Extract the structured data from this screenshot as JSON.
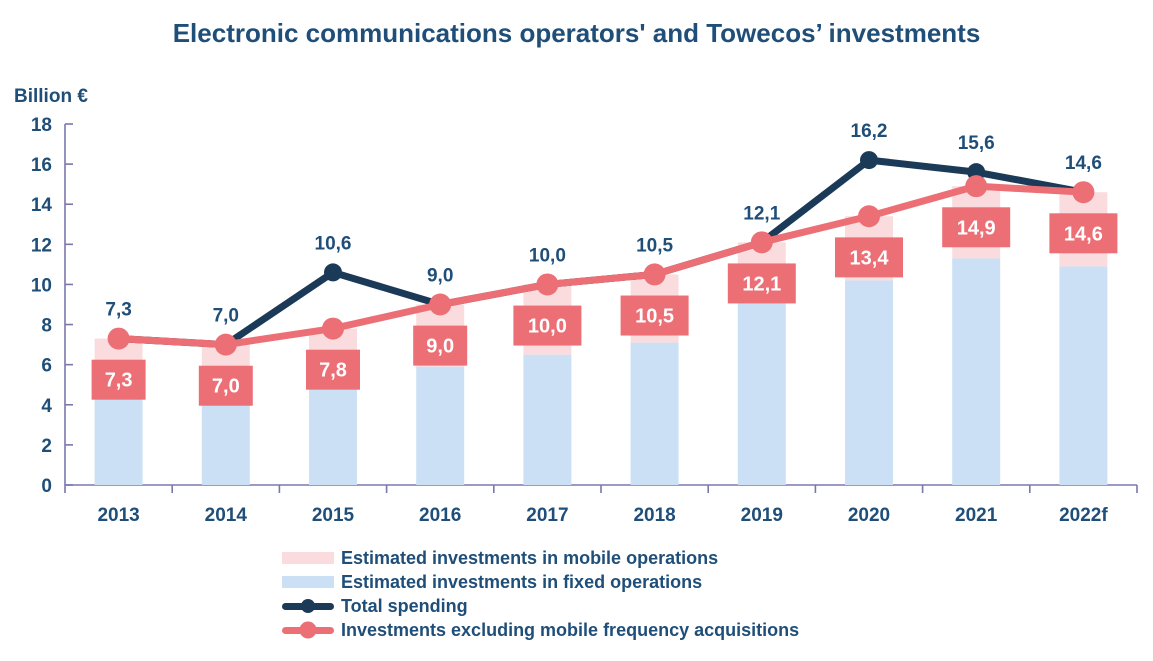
{
  "title": "Electronic communications operators' and Towecos’ investments",
  "colors": {
    "text_navy": "#1F4E79",
    "line_navy": "#1B3A58",
    "coral": "#EC6F76",
    "pink_bar": "#FADCDF",
    "blue_bar": "#CBE0F4",
    "axis": "#7878AD",
    "box_text": "#FFFFFF",
    "background": "#FFFFFF"
  },
  "chart_data": {
    "type": "combo (stacked bars + 2 lines)",
    "unit_label": "Billion €",
    "ylim": [
      0,
      18
    ],
    "yticks": [
      "0",
      "2",
      "4",
      "6",
      "8",
      "10",
      "12",
      "14",
      "16",
      "18"
    ],
    "grid": false,
    "legend_position": "bottom",
    "categories": [
      "2013",
      "2014",
      "2015",
      "2016",
      "2017",
      "2018",
      "2019",
      "2020",
      "2021",
      "2022f"
    ],
    "bar_series": [
      {
        "name": "Estimated investments in mobile operations",
        "stack_position": "top",
        "color": "#FADCDF",
        "values": [
          2.7,
          2.6,
          3.0,
          3.1,
          3.5,
          3.4,
          2.8,
          3.2,
          3.6,
          3.7
        ]
      },
      {
        "name": "Estimated investments in fixed operations",
        "stack_position": "bottom",
        "color": "#CBE0F4",
        "values": [
          4.6,
          4.4,
          4.8,
          5.9,
          6.5,
          7.1,
          9.3,
          10.2,
          11.3,
          10.9
        ]
      }
    ],
    "line_series": [
      {
        "name": "Total spending",
        "color": "#1B3A58",
        "values": [
          7.3,
          7.0,
          10.6,
          9.0,
          10.0,
          10.5,
          12.1,
          16.2,
          15.6,
          14.6
        ],
        "labels": [
          "7,3",
          "7,0",
          "10,6",
          "9,0",
          "10,0",
          "10,5",
          "12,1",
          "16,2",
          "15,6",
          "14,6"
        ]
      },
      {
        "name": "Investments excluding mobile frequency acquisitions",
        "color": "#EC6F76",
        "values": [
          7.3,
          7.0,
          7.8,
          9.0,
          10.0,
          10.5,
          12.1,
          13.4,
          14.9,
          14.6
        ],
        "labels": [
          "7,3",
          "7,0",
          "7,8",
          "9,0",
          "10,0",
          "10,5",
          "12,1",
          "13,4",
          "14,9",
          "14,6"
        ]
      }
    ],
    "legend": [
      {
        "label": "Estimated investments in mobile operations",
        "swatch": "bar",
        "color": "#FADCDF"
      },
      {
        "label": "Estimated investments in fixed operations",
        "swatch": "bar",
        "color": "#CBE0F4"
      },
      {
        "label": "Total spending",
        "swatch": "line",
        "color": "#1B3A58"
      },
      {
        "label": "Investments excluding mobile frequency acquisitions",
        "swatch": "line",
        "color": "#EC6F76"
      }
    ]
  }
}
